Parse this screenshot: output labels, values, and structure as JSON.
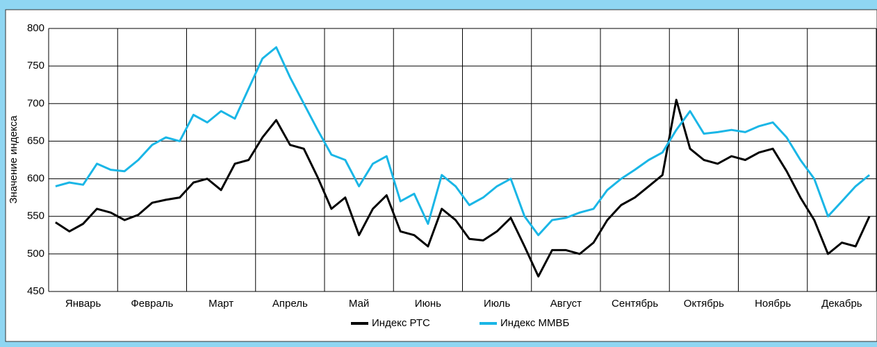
{
  "chart_data": {
    "type": "line",
    "y_label": "Значение индекса",
    "categories": [
      null,
      null,
      "Январь",
      null,
      null,
      null,
      null,
      "Февраль",
      null,
      null,
      null,
      null,
      "Март",
      null,
      null,
      null,
      null,
      "Апрель",
      null,
      null,
      null,
      null,
      "Май",
      null,
      null,
      null,
      null,
      "Июнь",
      null,
      null,
      null,
      null,
      "Июль",
      null,
      null,
      null,
      null,
      "Август",
      null,
      null,
      null,
      null,
      "Сентябрь",
      null,
      null,
      null,
      null,
      "Октябрь",
      null,
      null,
      null,
      null,
      "Ноябрь",
      null,
      null,
      null,
      null,
      "Декабрь",
      null,
      null
    ],
    "series": [
      {
        "name": "Индекс РТС",
        "color": "#000000",
        "values": [
          542,
          530,
          540,
          560,
          555,
          545,
          552,
          568,
          572,
          575,
          595,
          600,
          585,
          620,
          625,
          655,
          678,
          645,
          640,
          602,
          560,
          575,
          525,
          560,
          578,
          530,
          525,
          510,
          560,
          545,
          520,
          518,
          530,
          548,
          510,
          470,
          505,
          505,
          500,
          515,
          545,
          565,
          575,
          590,
          605,
          705,
          640,
          625,
          620,
          630,
          625,
          635,
          640,
          610,
          575,
          545,
          500,
          515,
          510,
          550
        ]
      },
      {
        "name": "Индекс ММВБ",
        "color": "#1ab6e6",
        "values": [
          590,
          595,
          592,
          620,
          612,
          610,
          625,
          645,
          655,
          650,
          685,
          675,
          690,
          680,
          720,
          760,
          775,
          735,
          700,
          665,
          632,
          625,
          590,
          620,
          630,
          570,
          580,
          540,
          605,
          590,
          565,
          575,
          590,
          600,
          550,
          525,
          545,
          548,
          555,
          560,
          585,
          600,
          612,
          625,
          635,
          665,
          690,
          660,
          662,
          665,
          662,
          670,
          675,
          655,
          625,
          600,
          550,
          570,
          590,
          605
        ]
      }
    ],
    "ylim": [
      450,
      800
    ],
    "yticks": [
      450,
      500,
      550,
      600,
      650,
      700,
      750,
      800
    ],
    "grid": true,
    "legend": "bottom"
  }
}
